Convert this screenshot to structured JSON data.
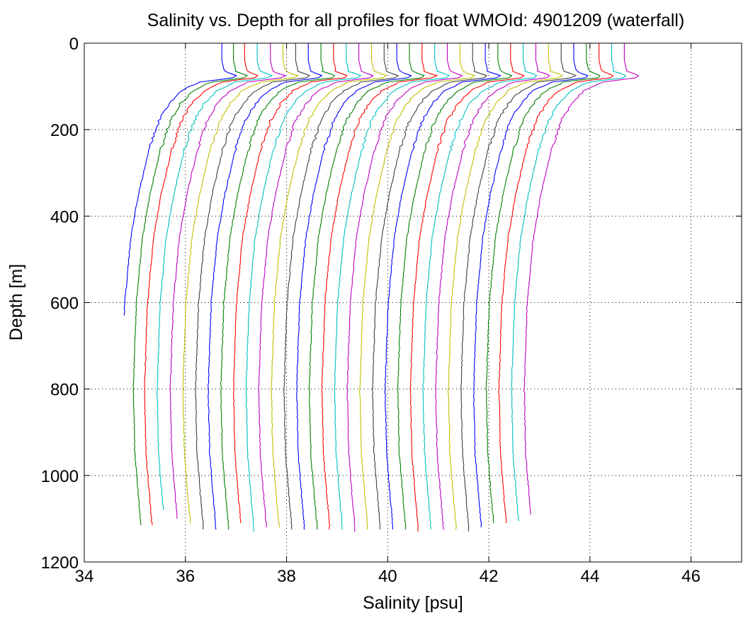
{
  "chart_data": {
    "type": "line",
    "title": "Salinity vs. Depth for all profiles for float WMOId: 4901209 (waterfall)",
    "xlabel": "Salinity [psu]",
    "ylabel": "Depth [m]",
    "xlim": [
      34,
      47
    ],
    "ylim": [
      0,
      1200
    ],
    "y_reversed": true,
    "grid": true,
    "grid_style": "dotted",
    "legend": "none",
    "xticks": [
      "34",
      "36",
      "38",
      "40",
      "42",
      "44",
      "46"
    ],
    "yticks": [
      "0",
      "200",
      "400",
      "600",
      "800",
      "1000",
      "1200"
    ],
    "waterfall_offset_psu": 0.25,
    "color_cycle": [
      "#0000ff",
      "#007f00",
      "#ff0000",
      "#00bfbf",
      "#bf00bf",
      "#bfbf00",
      "#3f3f3f"
    ],
    "base_profile": [
      {
        "depth": 0,
        "salinity": 37.0
      },
      {
        "depth": 40,
        "salinity": 37.0
      },
      {
        "depth": 65,
        "salinity": 37.05
      },
      {
        "depth": 78,
        "salinity": 37.35
      },
      {
        "depth": 90,
        "salinity": 36.55
      },
      {
        "depth": 110,
        "salinity": 36.2
      },
      {
        "depth": 140,
        "salinity": 35.95
      },
      {
        "depth": 180,
        "salinity": 35.75
      },
      {
        "depth": 250,
        "salinity": 35.55
      },
      {
        "depth": 350,
        "salinity": 35.35
      },
      {
        "depth": 450,
        "salinity": 35.2
      },
      {
        "depth": 600,
        "salinity": 35.08
      },
      {
        "depth": 800,
        "salinity": 35.02
      },
      {
        "depth": 950,
        "salinity": 35.05
      },
      {
        "depth": 1050,
        "salinity": 35.12
      },
      {
        "depth": 1115,
        "salinity": 35.17
      }
    ],
    "series": [
      {
        "surface_salinity": 36.72,
        "max_depth": 630
      },
      {
        "surface_salinity": 36.95,
        "max_depth": 1115
      },
      {
        "surface_salinity": 37.17,
        "max_depth": 1115
      },
      {
        "surface_salinity": 37.42,
        "max_depth": 1080
      },
      {
        "surface_salinity": 37.68,
        "max_depth": 1100
      },
      {
        "surface_salinity": 37.93,
        "max_depth": 1110
      },
      {
        "surface_salinity": 38.18,
        "max_depth": 1125
      },
      {
        "surface_salinity": 38.43,
        "max_depth": 1125
      },
      {
        "surface_salinity": 38.68,
        "max_depth": 1125
      },
      {
        "surface_salinity": 38.93,
        "max_depth": 1110
      },
      {
        "surface_salinity": 39.18,
        "max_depth": 1130
      },
      {
        "surface_salinity": 39.43,
        "max_depth": 1120
      },
      {
        "surface_salinity": 39.68,
        "max_depth": 1120
      },
      {
        "surface_salinity": 39.93,
        "max_depth": 1125
      },
      {
        "surface_salinity": 40.18,
        "max_depth": 1125
      },
      {
        "surface_salinity": 40.43,
        "max_depth": 1125
      },
      {
        "surface_salinity": 40.68,
        "max_depth": 1125
      },
      {
        "surface_salinity": 40.93,
        "max_depth": 1125
      },
      {
        "surface_salinity": 41.18,
        "max_depth": 1130
      },
      {
        "surface_salinity": 41.43,
        "max_depth": 1125
      },
      {
        "surface_salinity": 41.68,
        "max_depth": 1125
      },
      {
        "surface_salinity": 41.93,
        "max_depth": 1125
      },
      {
        "surface_salinity": 42.18,
        "max_depth": 1125
      },
      {
        "surface_salinity": 42.43,
        "max_depth": 1130
      },
      {
        "surface_salinity": 42.68,
        "max_depth": 1125
      },
      {
        "surface_salinity": 42.93,
        "max_depth": 1125
      },
      {
        "surface_salinity": 43.18,
        "max_depth": 1125
      },
      {
        "surface_salinity": 43.43,
        "max_depth": 1130
      },
      {
        "surface_salinity": 43.68,
        "max_depth": 1120
      },
      {
        "surface_salinity": 43.93,
        "max_depth": 1110
      },
      {
        "surface_salinity": 44.18,
        "max_depth": 1110
      },
      {
        "surface_salinity": 44.43,
        "max_depth": 1105
      },
      {
        "surface_salinity": 44.68,
        "max_depth": 1090
      }
    ]
  }
}
